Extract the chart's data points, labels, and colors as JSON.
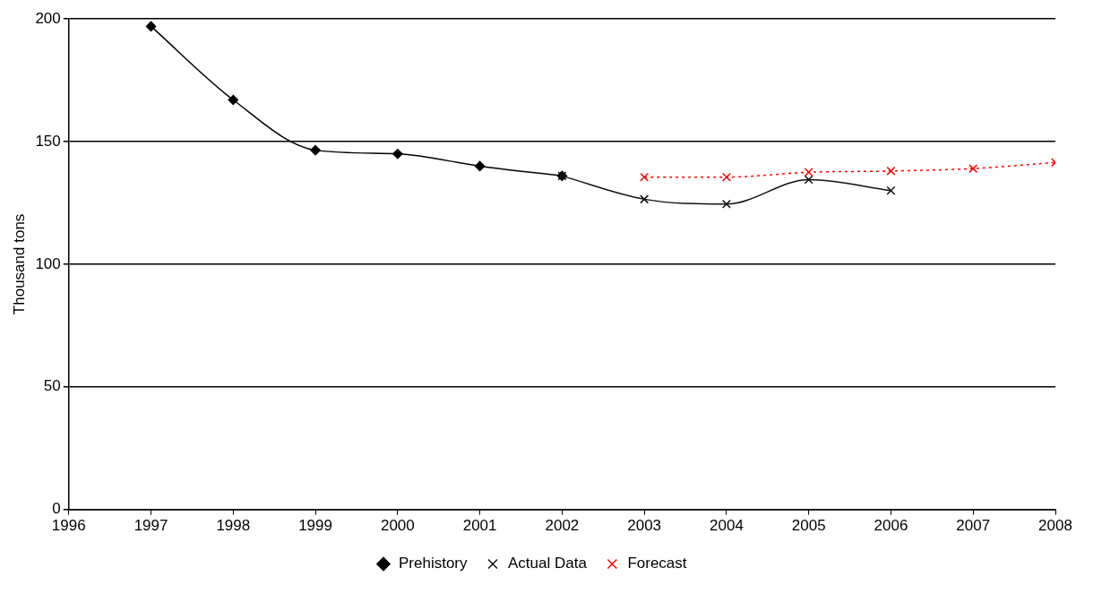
{
  "chart_data": {
    "type": "line",
    "ylabel": "Thousand tons",
    "xlim": [
      1996,
      2008
    ],
    "xticks": [
      1996,
      1997,
      1998,
      1999,
      2000,
      2001,
      2002,
      2003,
      2004,
      2005,
      2006,
      2007,
      2008
    ],
    "ylim": [
      0,
      200
    ],
    "yticks": [
      0,
      50,
      100,
      150,
      200
    ],
    "grid": "y",
    "legend": "bottom",
    "series": [
      {
        "name": "Prehistory",
        "color": "#000000",
        "marker": "diamond",
        "line_style": "solid",
        "x": [
          1997,
          1998,
          1999,
          2000,
          2001,
          2002
        ],
        "values": [
          197,
          167,
          146.5,
          145,
          140,
          136
        ]
      },
      {
        "name": "Actual Data",
        "color": "#111111",
        "marker": "cross",
        "line_style": "solid",
        "x": [
          2002,
          2003,
          2004,
          2005,
          2006
        ],
        "values": [
          136,
          126.5,
          124.5,
          134.5,
          130
        ]
      },
      {
        "name": "Forecast",
        "color": "#ff0000",
        "marker": "cross",
        "line_style": "dotted",
        "x": [
          2003,
          2004,
          2005,
          2006,
          2007,
          2008
        ],
        "values": [
          135.5,
          135.5,
          137.5,
          138,
          139,
          141.5
        ]
      }
    ]
  }
}
